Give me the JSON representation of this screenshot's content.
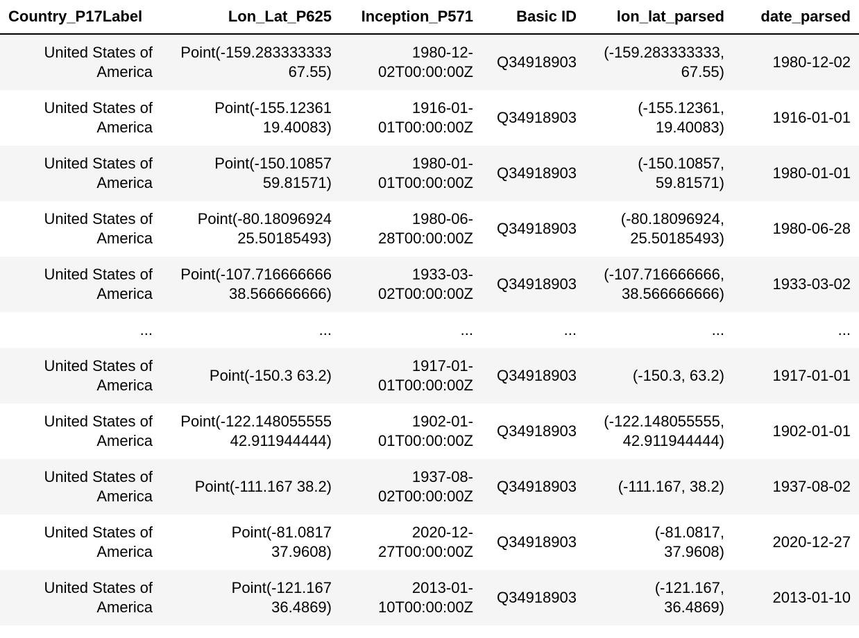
{
  "table": {
    "columns": [
      "Country_P17Label",
      "Lon_Lat_P625",
      "Inception_P571",
      "Basic ID",
      "lon_lat_parsed",
      "date_parsed"
    ],
    "rows": [
      [
        "United States of America",
        "Point(-159.283333333 67.55)",
        "1980-12-02T00:00:00Z",
        "Q34918903",
        "(-159.283333333, 67.55)",
        "1980-12-02"
      ],
      [
        "United States of America",
        "Point(-155.12361 19.40083)",
        "1916-01-01T00:00:00Z",
        "Q34918903",
        "(-155.12361, 19.40083)",
        "1916-01-01"
      ],
      [
        "United States of America",
        "Point(-150.10857 59.81571)",
        "1980-01-01T00:00:00Z",
        "Q34918903",
        "(-150.10857, 59.81571)",
        "1980-01-01"
      ],
      [
        "United States of America",
        "Point(-80.18096924 25.50185493)",
        "1980-06-28T00:00:00Z",
        "Q34918903",
        "(-80.18096924, 25.50185493)",
        "1980-06-28"
      ],
      [
        "United States of America",
        "Point(-107.716666666 38.566666666)",
        "1933-03-02T00:00:00Z",
        "Q34918903",
        "(-107.716666666, 38.566666666)",
        "1933-03-02"
      ],
      [
        "...",
        "...",
        "...",
        "...",
        "...",
        "..."
      ],
      [
        "United States of America",
        "Point(-150.3 63.2)",
        "1917-01-01T00:00:00Z",
        "Q34918903",
        "(-150.3, 63.2)",
        "1917-01-01"
      ],
      [
        "United States of America",
        "Point(-122.148055555 42.911944444)",
        "1902-01-01T00:00:00Z",
        "Q34918903",
        "(-122.148055555, 42.911944444)",
        "1902-01-01"
      ],
      [
        "United States of America",
        "Point(-111.167 38.2)",
        "1937-08-02T00:00:00Z",
        "Q34918903",
        "(-111.167, 38.2)",
        "1937-08-02"
      ],
      [
        "United States of America",
        "Point(-81.0817 37.9608)",
        "2020-12-27T00:00:00Z",
        "Q34918903",
        "(-81.0817, 37.9608)",
        "2020-12-27"
      ],
      [
        "United States of America",
        "Point(-121.167 36.4869)",
        "2013-01-10T00:00:00Z",
        "Q34918903",
        "(-121.167, 36.4869)",
        "2013-01-10"
      ]
    ],
    "ellipsis_row_index": 5,
    "colors": {
      "stripe_background": "#f5f5f5",
      "row_background": "#ffffff",
      "text": "#000000",
      "header_border": "#000000"
    }
  }
}
